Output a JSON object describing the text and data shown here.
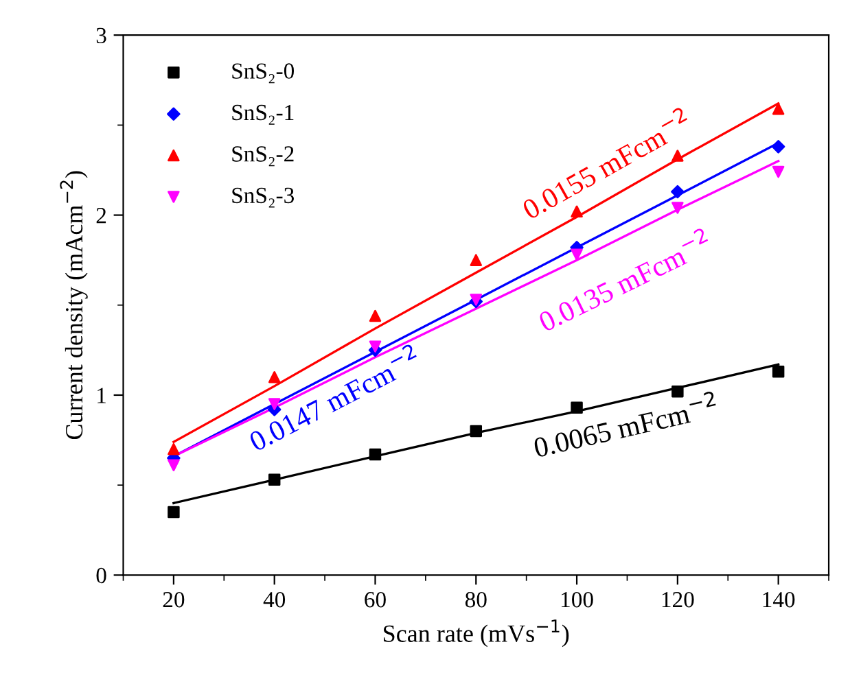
{
  "chart_data": {
    "type": "scatter",
    "xlabel": "Scan rate (mVs$^{−1}$)",
    "ylabel": "Current density (mAcm$^{−2}$)",
    "x": [
      20,
      40,
      60,
      80,
      100,
      120,
      140
    ],
    "series": [
      {
        "name": "SnS₂-0",
        "color": "#000000",
        "marker": "square",
        "values": [
          0.35,
          0.53,
          0.67,
          0.8,
          0.93,
          1.02,
          1.13
        ]
      },
      {
        "name": "SnS₂-1",
        "color": "#0000ff",
        "marker": "diamond",
        "values": [
          0.65,
          0.92,
          1.25,
          1.52,
          1.82,
          2.13,
          2.38
        ]
      },
      {
        "name": "SnS₂-2",
        "color": "#ff0000",
        "marker": "triangle",
        "values": [
          0.7,
          1.1,
          1.44,
          1.75,
          2.02,
          2.33,
          2.59
        ]
      },
      {
        "name": "SnS₂-3",
        "color": "#ff00ff",
        "marker": "triangle_down",
        "values": [
          0.61,
          0.95,
          1.27,
          1.53,
          1.78,
          2.04,
          2.24
        ]
      },
      {
        "type": "line",
        "color": "#000000",
        "marker": "none",
        "values": [
          0.4,
          0.53,
          0.66,
          0.79,
          0.91,
          1.04,
          1.17
        ]
      },
      {
        "type": "line",
        "color": "#0000ff",
        "marker": "none",
        "values": [
          0.66,
          0.95,
          1.24,
          1.53,
          1.82,
          2.11,
          2.4
        ]
      },
      {
        "type": "line",
        "color": "#ff0000",
        "marker": "none",
        "values": [
          0.74,
          1.05,
          1.37,
          1.68,
          1.99,
          2.31,
          2.62
        ]
      },
      {
        "type": "line",
        "color": "#ff00ff",
        "marker": "none",
        "values": [
          0.66,
          0.93,
          1.21,
          1.48,
          1.75,
          2.03,
          2.3
        ]
      }
    ],
    "xlim": [
      10,
      150
    ],
    "xticks": [
      20,
      40,
      60,
      80,
      100,
      120,
      140
    ],
    "ylim": [
      0,
      3
    ],
    "yticks": [
      0,
      1,
      2,
      3
    ],
    "grid": false,
    "legend": "top left",
    "annotations": [
      "0.0155 mFcm$^{−2}$",
      "0.0147 mFcm$^{−2}$",
      "0.0135 mFcm$^{−2}$",
      "0.0065 mFcm$^{−2}$"
    ]
  }
}
